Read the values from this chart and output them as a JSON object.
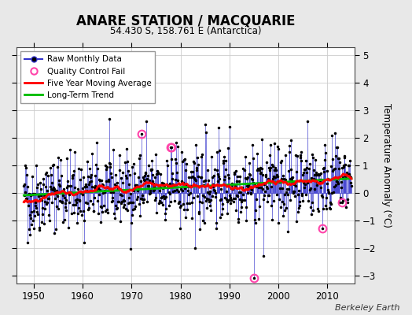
{
  "title": "ANARE STATION / MACQUARIE",
  "subtitle": "54.430 S, 158.761 E (Antarctica)",
  "ylabel": "Temperature Anomaly (°C)",
  "attribution": "Berkeley Earth",
  "xlim": [
    1946.5,
    2015.5
  ],
  "ylim": [
    -3.3,
    5.3
  ],
  "yticks": [
    -3,
    -2,
    -1,
    0,
    1,
    2,
    3,
    4,
    5
  ],
  "xticks": [
    1950,
    1960,
    1970,
    1980,
    1990,
    2000,
    2010
  ],
  "bg_color": "#e8e8e8",
  "plot_bg_color": "#ffffff",
  "raw_line_color": "#3333cc",
  "raw_fill_color": "#aaaaee",
  "raw_marker_color": "#000000",
  "ma_color": "#ff0000",
  "trend_color": "#00bb00",
  "qc_color": "#ff44aa",
  "grid_color": "#cccccc",
  "start_year": 1948,
  "end_year": 2014,
  "seed": 42
}
